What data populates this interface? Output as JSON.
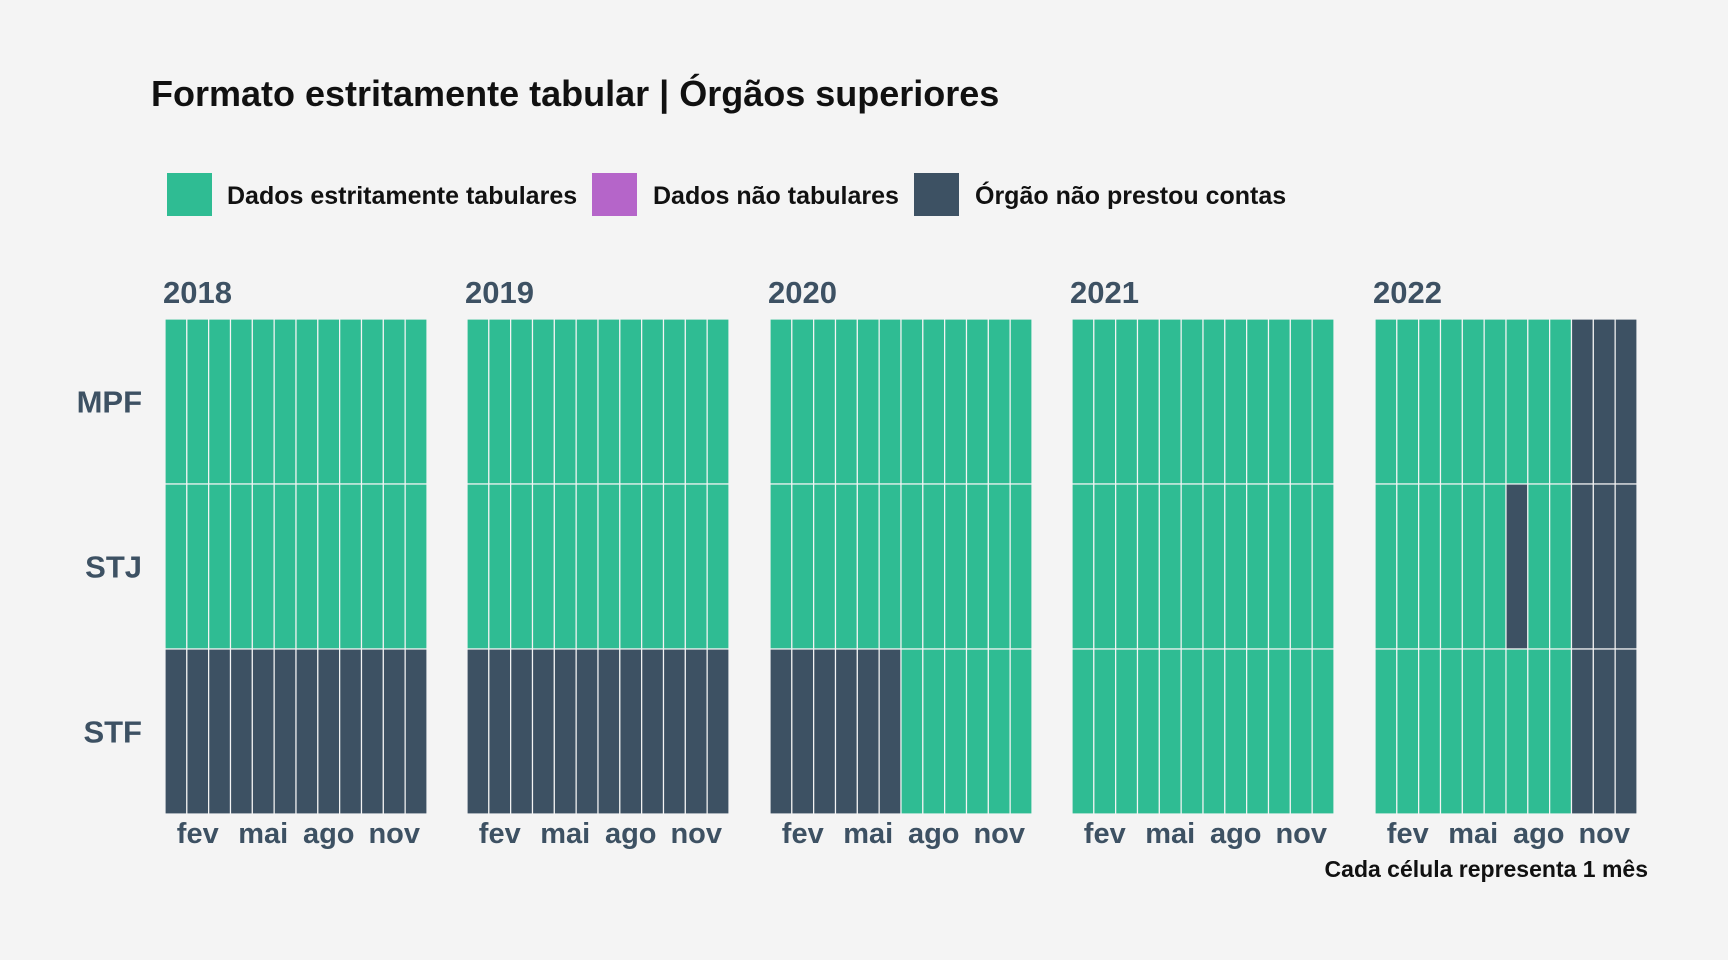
{
  "chart_data": {
    "type": "heatmap",
    "title": "Formato estritamente tabular | Órgãos superiores",
    "caption": "Cada célula representa 1 mês",
    "legend_position": "top-left",
    "grid": false,
    "legend": [
      {
        "key": "tab",
        "label": "Dados estritamente tabulares",
        "color": "#2fbc93"
      },
      {
        "key": "nontab",
        "label": "Dados não tabulares",
        "color": "#b565c9"
      },
      {
        "key": "none",
        "label": "Órgão não prestou contas",
        "color": "#3d5163"
      }
    ],
    "rows": [
      "MPF",
      "STJ",
      "STF"
    ],
    "x_ticks": [
      {
        "month": 2,
        "label": "fev"
      },
      {
        "month": 5,
        "label": "mai"
      },
      {
        "month": 8,
        "label": "ago"
      },
      {
        "month": 11,
        "label": "nov"
      }
    ],
    "facets": [
      {
        "year": "2018",
        "cells": {
          "MPF": [
            "tab",
            "tab",
            "tab",
            "tab",
            "tab",
            "tab",
            "tab",
            "tab",
            "tab",
            "tab",
            "tab",
            "tab"
          ],
          "STJ": [
            "tab",
            "tab",
            "tab",
            "tab",
            "tab",
            "tab",
            "tab",
            "tab",
            "tab",
            "tab",
            "tab",
            "tab"
          ],
          "STF": [
            "none",
            "none",
            "none",
            "none",
            "none",
            "none",
            "none",
            "none",
            "none",
            "none",
            "none",
            "none"
          ]
        }
      },
      {
        "year": "2019",
        "cells": {
          "MPF": [
            "tab",
            "tab",
            "tab",
            "tab",
            "tab",
            "tab",
            "tab",
            "tab",
            "tab",
            "tab",
            "tab",
            "tab"
          ],
          "STJ": [
            "tab",
            "tab",
            "tab",
            "tab",
            "tab",
            "tab",
            "tab",
            "tab",
            "tab",
            "tab",
            "tab",
            "tab"
          ],
          "STF": [
            "none",
            "none",
            "none",
            "none",
            "none",
            "none",
            "none",
            "none",
            "none",
            "none",
            "none",
            "none"
          ]
        }
      },
      {
        "year": "2020",
        "cells": {
          "MPF": [
            "tab",
            "tab",
            "tab",
            "tab",
            "tab",
            "tab",
            "tab",
            "tab",
            "tab",
            "tab",
            "tab",
            "tab"
          ],
          "STJ": [
            "tab",
            "tab",
            "tab",
            "tab",
            "tab",
            "tab",
            "tab",
            "tab",
            "tab",
            "tab",
            "tab",
            "tab"
          ],
          "STF": [
            "none",
            "none",
            "none",
            "none",
            "none",
            "none",
            "tab",
            "tab",
            "tab",
            "tab",
            "tab",
            "tab"
          ]
        }
      },
      {
        "year": "2021",
        "cells": {
          "MPF": [
            "tab",
            "tab",
            "tab",
            "tab",
            "tab",
            "tab",
            "tab",
            "tab",
            "tab",
            "tab",
            "tab",
            "tab"
          ],
          "STJ": [
            "tab",
            "tab",
            "tab",
            "tab",
            "tab",
            "tab",
            "tab",
            "tab",
            "tab",
            "tab",
            "tab",
            "tab"
          ],
          "STF": [
            "tab",
            "tab",
            "tab",
            "tab",
            "tab",
            "tab",
            "tab",
            "tab",
            "tab",
            "tab",
            "tab",
            "tab"
          ]
        }
      },
      {
        "year": "2022",
        "cells": {
          "MPF": [
            "tab",
            "tab",
            "tab",
            "tab",
            "tab",
            "tab",
            "tab",
            "tab",
            "tab",
            "none",
            "none",
            "none"
          ],
          "STJ": [
            "tab",
            "tab",
            "tab",
            "tab",
            "tab",
            "tab",
            "none",
            "tab",
            "tab",
            "none",
            "none",
            "none"
          ],
          "STF": [
            "tab",
            "tab",
            "tab",
            "tab",
            "tab",
            "tab",
            "tab",
            "tab",
            "tab",
            "none",
            "none",
            "none"
          ]
        }
      }
    ]
  }
}
